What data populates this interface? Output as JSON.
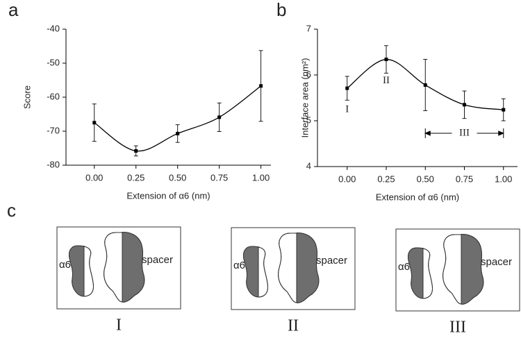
{
  "panel_labels": [
    "a",
    "b",
    "c"
  ],
  "chart_data": [
    {
      "type": "line",
      "x_label": "Extension of α6 (nm)",
      "y_label": "Score",
      "x": [
        0,
        0.25,
        0.5,
        0.75,
        1.0
      ],
      "values": [
        -67.5,
        -75.8,
        -70.7,
        -65.9,
        -56.7
      ],
      "errors": [
        5.5,
        1.5,
        2.6,
        4.2,
        10.4
      ],
      "color": "#000000",
      "xlim": [
        -0.17,
        1.06
      ],
      "xticks": [
        {
          "value": 0,
          "label": "0.00"
        },
        {
          "value": 0.25,
          "label": "0.25"
        },
        {
          "value": 0.5,
          "label": "0.50"
        },
        {
          "value": 0.75,
          "label": "0.75"
        },
        {
          "value": 1,
          "label": "1.00"
        }
      ],
      "ylim": [
        -80,
        -40
      ],
      "yticks": [
        -80,
        -70,
        -60,
        -50,
        -40
      ]
    },
    {
      "type": "line",
      "x_label": "Extension of α6 (nm)",
      "y_label": "Interface area (nm²)",
      "x": [
        0,
        0.25,
        0.5,
        0.75,
        1.0
      ],
      "values": [
        5.71,
        6.34,
        5.78,
        5.35,
        5.24
      ],
      "errors": [
        0.26,
        0.3,
        0.56,
        0.3,
        0.24
      ],
      "color": "#000000",
      "annotations": [
        "I",
        "II",
        "III"
      ],
      "xlim": [
        -0.19,
        1.09
      ],
      "xticks": [
        {
          "value": 0,
          "label": "0.00"
        },
        {
          "value": 0.25,
          "label": "0.25"
        },
        {
          "value": 0.5,
          "label": "0.50"
        },
        {
          "value": 0.75,
          "label": "0.75"
        },
        {
          "value": 1,
          "label": "1.00"
        }
      ],
      "ylim": [
        4,
        7
      ],
      "yticks": [
        4,
        5,
        6,
        7
      ]
    }
  ],
  "diagram": {
    "panels": [
      {
        "left_label": "α6",
        "right_label": "spacer",
        "caption": "I"
      },
      {
        "left_label": "α6",
        "right_label": "spacer",
        "caption": "II"
      },
      {
        "left_label": "α6",
        "right_label": "spacer",
        "caption": "III"
      }
    ]
  }
}
